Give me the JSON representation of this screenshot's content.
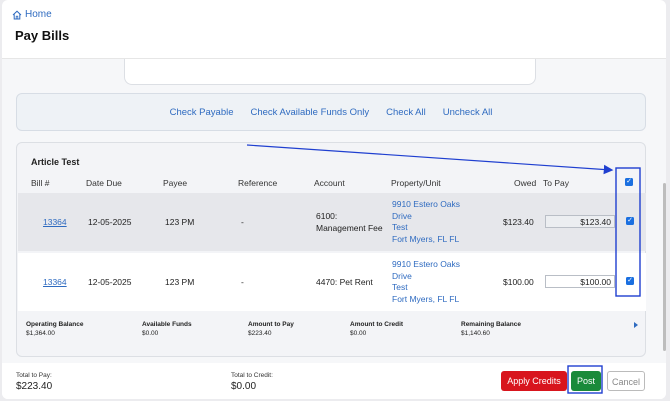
{
  "breadcrumb": {
    "home": "Home",
    "icon": "home-icon"
  },
  "page_title": "Pay Bills",
  "actions": [
    "Check Payable",
    "Check Available Funds Only",
    "Check All",
    "Uncheck All"
  ],
  "panel": {
    "title": "Article Test",
    "headers": {
      "bill": "Bill #",
      "date_due": "Date Due",
      "payee": "Payee",
      "reference": "Reference",
      "account": "Account",
      "property": "Property/Unit",
      "owed": "Owed",
      "to_pay": "To Pay"
    },
    "rows": [
      {
        "bill": "13364",
        "date_due": "12-05-2025",
        "payee": "123 PM",
        "reference": "-",
        "account_1": "6100:",
        "account_2": "Management Fee",
        "prop_1": "9910 Estero Oaks",
        "prop_2": "Drive",
        "prop_3": "Test",
        "prop_4": "Fort Myers, FL FL",
        "owed": "$123.40",
        "to_pay": "$123.40"
      },
      {
        "bill": "13364",
        "date_due": "12-05-2025",
        "payee": "123 PM",
        "reference": "-",
        "account_1": "4470: Pet Rent",
        "account_2": "",
        "prop_1": "9910 Estero Oaks",
        "prop_2": "Drive",
        "prop_3": "Test",
        "prop_4": "Fort Myers, FL FL",
        "owed": "$100.00",
        "to_pay": "$100.00"
      }
    ],
    "summary": {
      "operating_balance_label": "Operating Balance",
      "operating_balance": "$1,364.00",
      "available_funds_label": "Available Funds",
      "available_funds": "$0.00",
      "amount_to_pay_label": "Amount to Pay",
      "amount_to_pay": "$223.40",
      "amount_to_credit_label": "Amount to Credit",
      "amount_to_credit": "$0.00",
      "remaining_balance_label": "Remaining Balance",
      "remaining_balance": "$1,140.60"
    }
  },
  "footer": {
    "total_to_pay_label": "Total to Pay:",
    "total_to_pay": "$223.40",
    "total_to_credit_label": "Total to Credit:",
    "total_to_credit": "$0.00",
    "apply_credits": "Apply Credits",
    "post": "Post",
    "cancel": "Cancel"
  },
  "colors": {
    "link": "#2f6bc0",
    "checkbox": "#1a6fe0",
    "apply": "#d8151d",
    "post": "#1a8a3a",
    "annotation": "#1f3fd0"
  }
}
